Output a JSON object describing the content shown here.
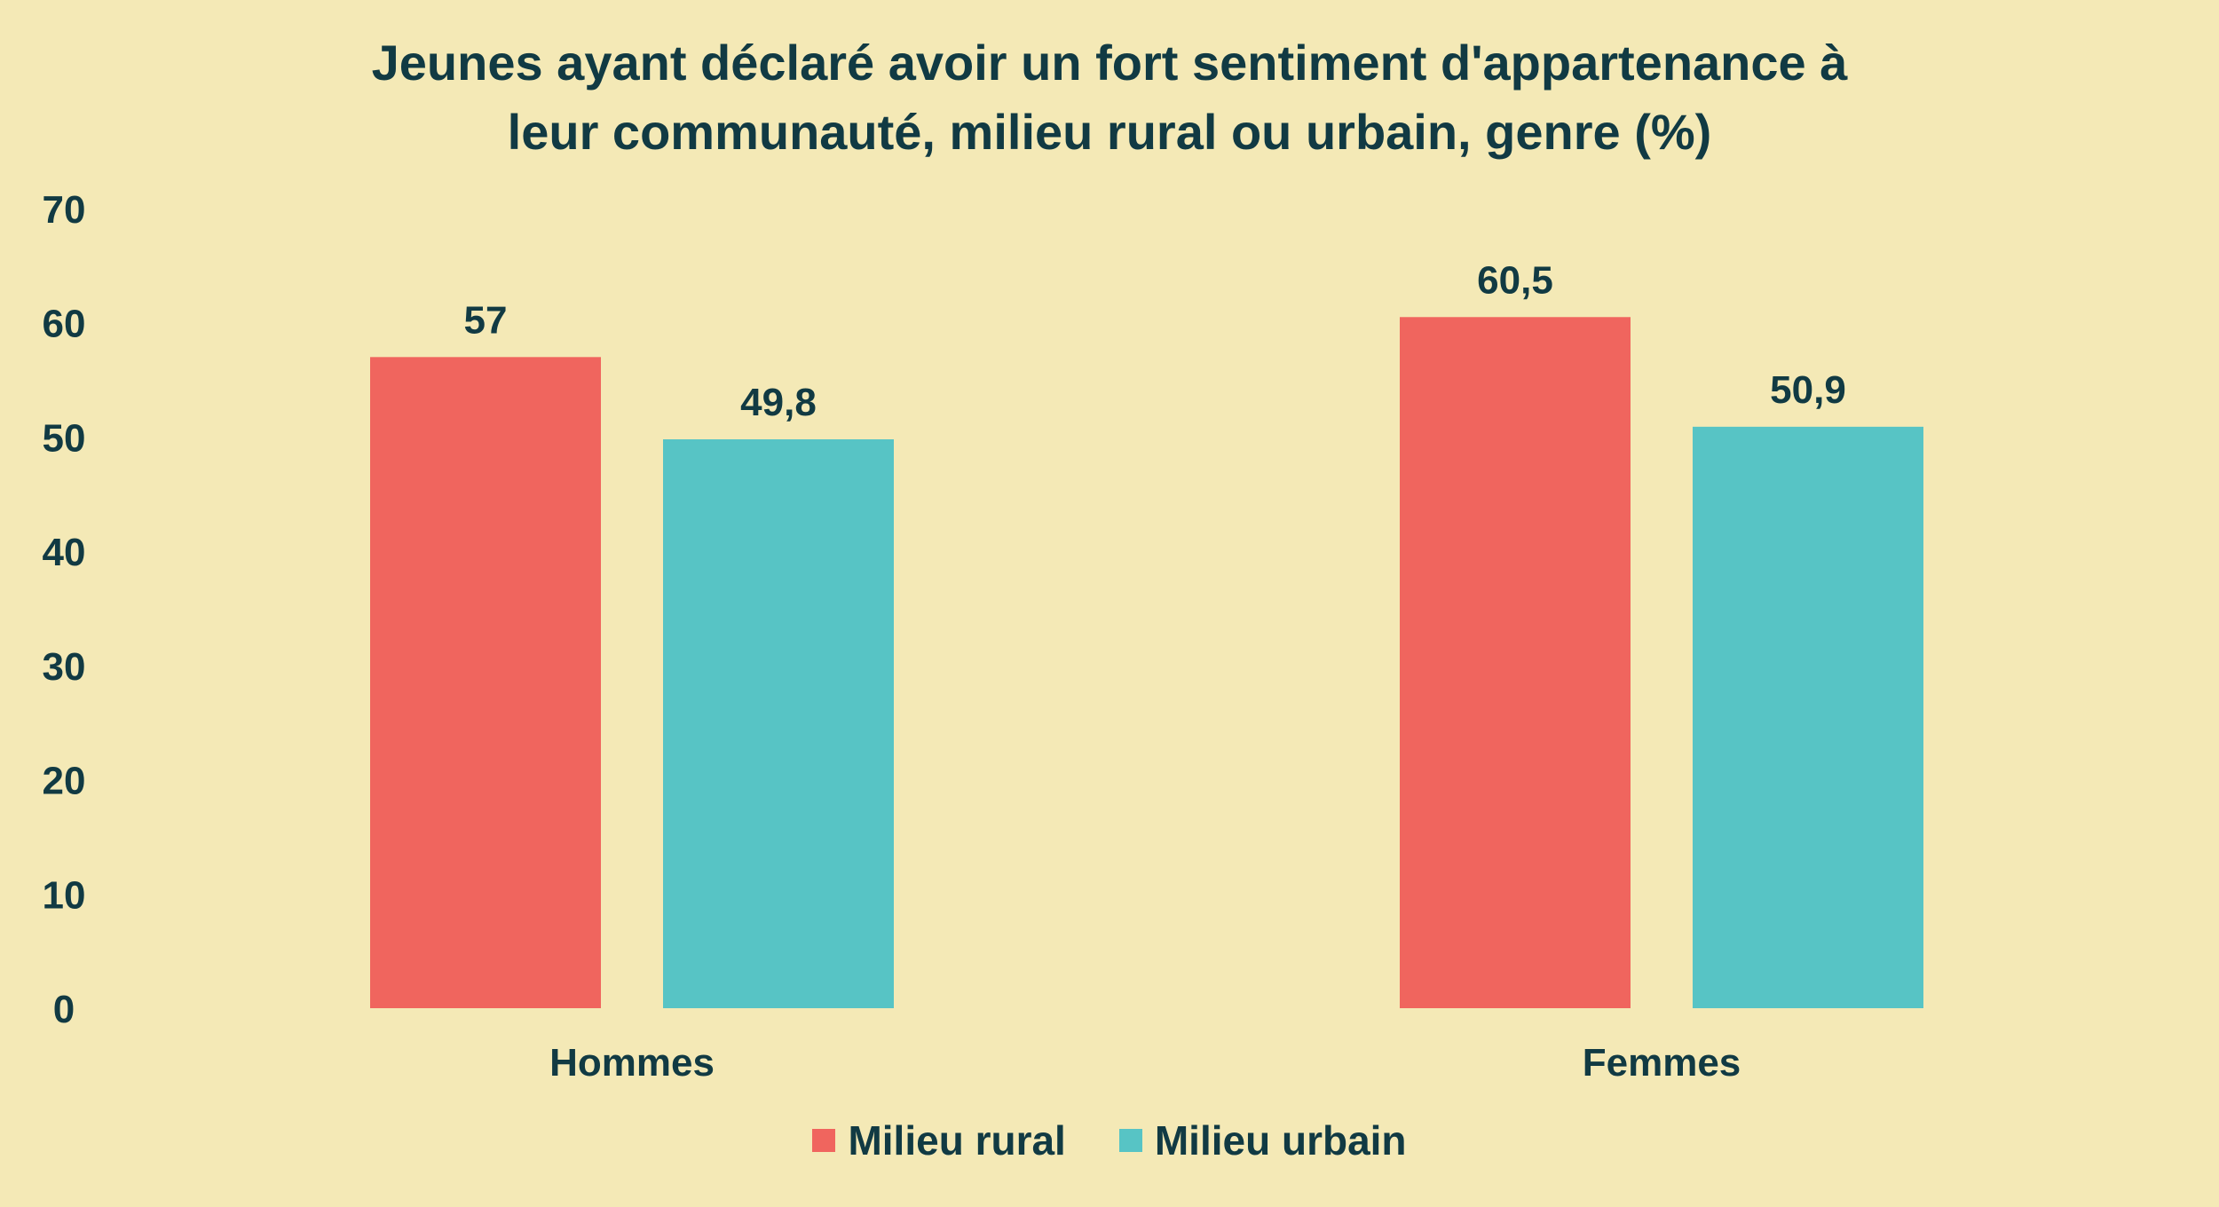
{
  "chart_data": {
    "type": "bar",
    "title_lines": [
      "Jeunes ayant déclaré avoir un fort sentiment d'appartenance à",
      "leur communauté, milieu rural ou urbain, genre (%)"
    ],
    "categories": [
      "Hommes",
      "Femmes"
    ],
    "series": [
      {
        "name": "Milieu rural",
        "color": "#f0655e",
        "values": [
          57,
          60.5
        ],
        "value_labels": [
          "57",
          "60,5"
        ]
      },
      {
        "name": "Milieu urbain",
        "color": "#57c4c5",
        "values": [
          49.8,
          50.9
        ],
        "value_labels": [
          "49,8",
          "50,9"
        ]
      }
    ],
    "ylim": [
      0,
      70
    ],
    "yticks": [
      "0",
      "10",
      "20",
      "30",
      "40",
      "50",
      "60",
      "70"
    ],
    "grid": false,
    "legend_position": "bottom"
  }
}
